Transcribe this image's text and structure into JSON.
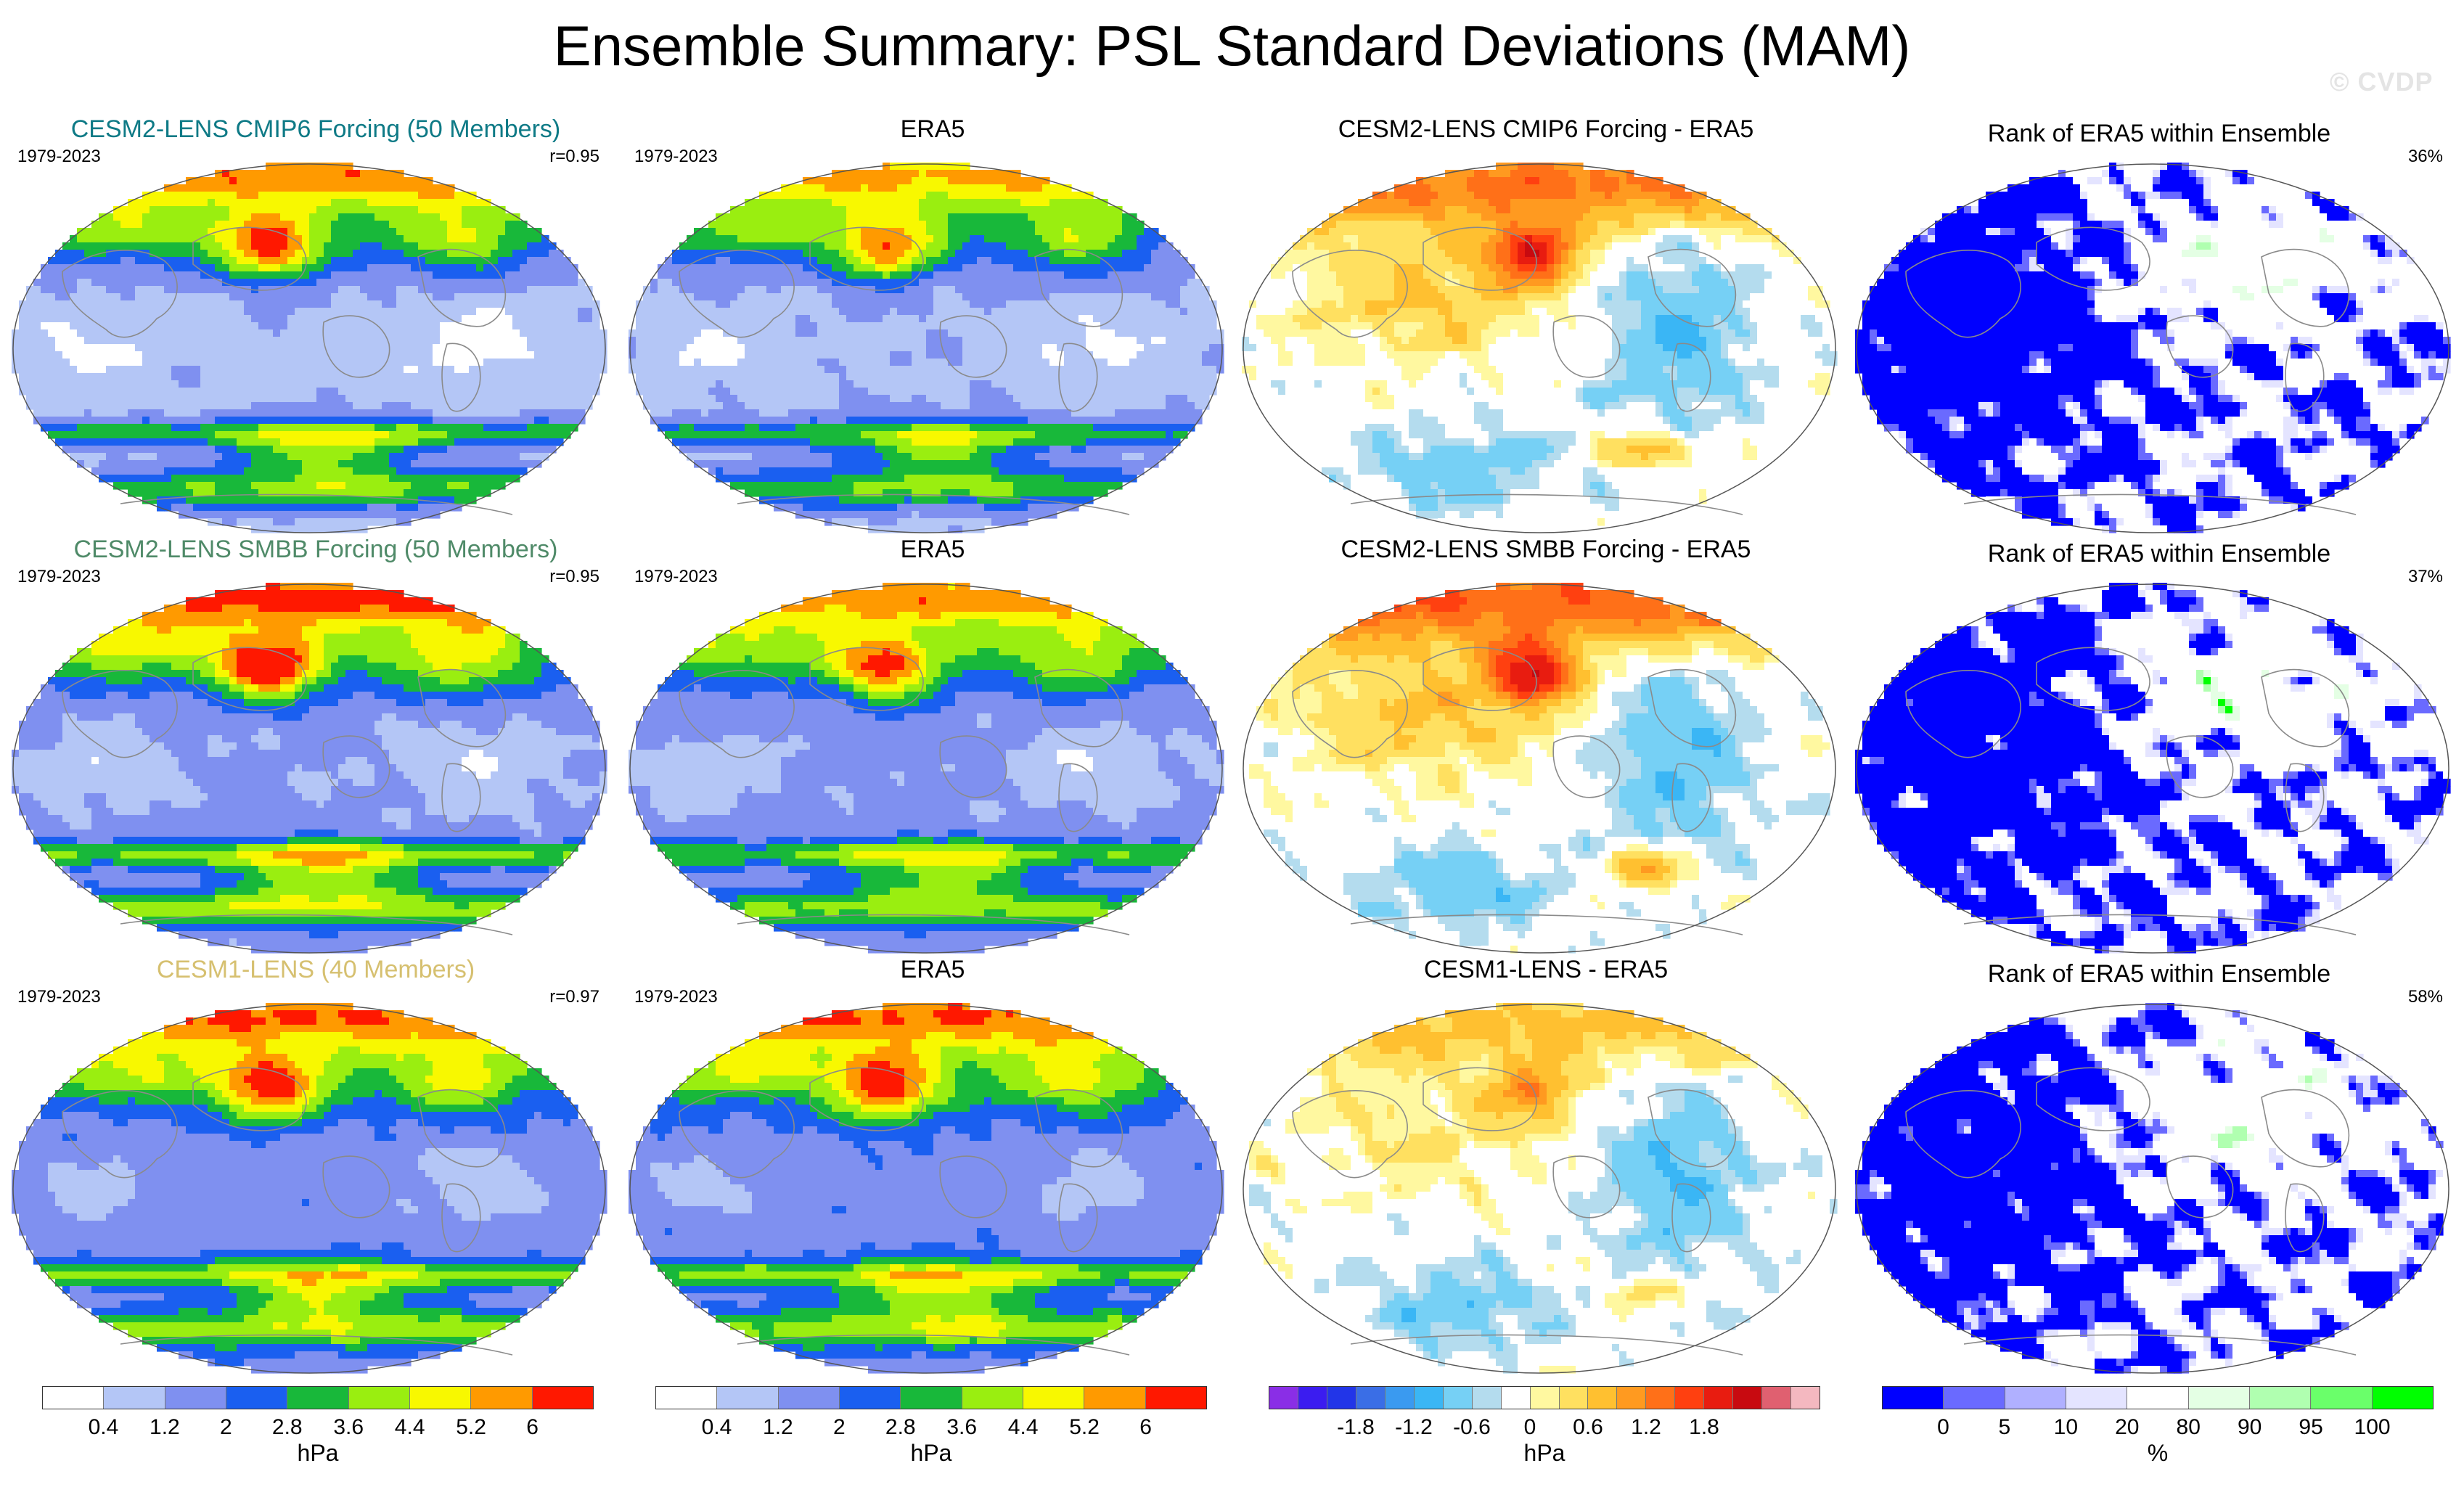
{
  "title": "Ensemble Summary: PSL Standard Deviations (MAM)",
  "watermark": "© CVDP",
  "colors": {
    "cmip6_title": "#0e7a86",
    "smbb_title": "#4f8a68",
    "cesm1_title": "#d6c070",
    "land_outline": "#8a8a8a"
  },
  "chart_data": [
    {
      "type": "heatmap",
      "title": "CESM2-LENS CMIP6 Forcing (50 Members)",
      "period": "1979-2023",
      "stat": "r=0.95",
      "field": "psl_stddev",
      "projection": "robinson-like",
      "intensity": 1.12,
      "colorscale": "hpa"
    },
    {
      "type": "heatmap",
      "title": "ERA5",
      "period": "1979-2023",
      "stat": "",
      "field": "psl_stddev",
      "projection": "robinson-like",
      "intensity": 1.0,
      "colorscale": "hpa"
    },
    {
      "type": "heatmap",
      "title": "CESM2-LENS CMIP6 Forcing - ERA5",
      "period": "",
      "stat": "",
      "field": "difference",
      "projection": "robinson-like",
      "intensity": 1.0,
      "colorscale": "diff"
    },
    {
      "type": "heatmap",
      "title": "Rank of ERA5 within Ensemble",
      "period": "",
      "stat": "36%",
      "field": "rank",
      "projection": "robinson-like",
      "intensity": 1.0,
      "colorscale": "rank"
    },
    {
      "type": "heatmap",
      "title": "CESM2-LENS SMBB Forcing (50 Members)",
      "period": "1979-2023",
      "stat": "r=0.95",
      "field": "psl_stddev",
      "projection": "robinson-like",
      "intensity": 1.18,
      "colorscale": "hpa"
    },
    {
      "type": "heatmap",
      "title": "ERA5",
      "period": "1979-2023",
      "stat": "",
      "field": "psl_stddev",
      "projection": "robinson-like",
      "intensity": 1.0,
      "colorscale": "hpa"
    },
    {
      "type": "heatmap",
      "title": "CESM2-LENS SMBB Forcing - ERA5",
      "period": "",
      "stat": "",
      "field": "difference",
      "projection": "robinson-like",
      "intensity": 1.1,
      "colorscale": "diff"
    },
    {
      "type": "heatmap",
      "title": "Rank of ERA5 within Ensemble",
      "period": "",
      "stat": "37%",
      "field": "rank",
      "projection": "robinson-like",
      "intensity": 1.0,
      "colorscale": "rank"
    },
    {
      "type": "heatmap",
      "title": "CESM1-LENS (40 Members)",
      "period": "1979-2023",
      "stat": "r=0.97",
      "field": "psl_stddev",
      "projection": "robinson-like",
      "intensity": 1.02,
      "colorscale": "hpa"
    },
    {
      "type": "heatmap",
      "title": "ERA5",
      "period": "1979-2023",
      "stat": "",
      "field": "psl_stddev",
      "projection": "robinson-like",
      "intensity": 1.0,
      "colorscale": "hpa"
    },
    {
      "type": "heatmap",
      "title": "CESM1-LENS - ERA5",
      "period": "",
      "stat": "",
      "field": "difference",
      "projection": "robinson-like",
      "intensity": 0.55,
      "colorscale": "diff"
    },
    {
      "type": "heatmap",
      "title": "Rank of ERA5 within Ensemble",
      "period": "",
      "stat": "58%",
      "field": "rank",
      "projection": "robinson-like",
      "intensity": 1.0,
      "colorscale": "rank"
    }
  ],
  "colorbars": {
    "hpa": {
      "colors": [
        "#ffffff",
        "#b4c6f6",
        "#7f90f0",
        "#1a5ff0",
        "#18b83a",
        "#9aee10",
        "#f8f800",
        "#ff9a00",
        "#ff1800"
      ],
      "ticks": [
        "0.4",
        "1.2",
        "2",
        "2.8",
        "3.6",
        "4.4",
        "5.2",
        "6"
      ],
      "unit": "hPa"
    },
    "diff": {
      "colors": [
        "#8a2ee6",
        "#3b1cf0",
        "#2235e8",
        "#3a6ee6",
        "#3a9af0",
        "#3ab6f5",
        "#76d0f5",
        "#b4dcee",
        "#ffffff",
        "#fff8a0",
        "#ffe060",
        "#ffc030",
        "#ff9a20",
        "#ff7018",
        "#ff4010",
        "#e81c10",
        "#c80a10",
        "#e06070",
        "#f4b8c0"
      ],
      "ticks": [
        "-1.8",
        "-1.2",
        "-0.6",
        "0",
        "0.6",
        "1.2",
        "1.8"
      ],
      "unit": "hPa"
    },
    "rank": {
      "colors": [
        "#0000ff",
        "#6a6aff",
        "#b0b0ff",
        "#e4e4ff",
        "#ffffff",
        "#e4ffe4",
        "#b0ffb0",
        "#6aff6a",
        "#00ff00"
      ],
      "ticks": [
        "0",
        "5",
        "10",
        "20",
        "80",
        "90",
        "95",
        "100"
      ],
      "unit": "%"
    }
  }
}
